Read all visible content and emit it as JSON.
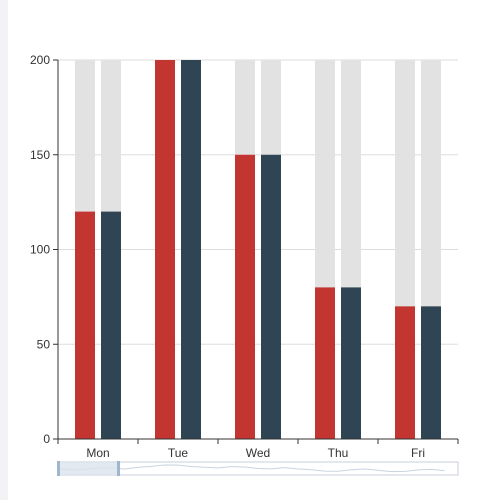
{
  "chart_data": {
    "type": "bar",
    "categories": [
      "Mon",
      "Tue",
      "Wed",
      "Thu",
      "Fri"
    ],
    "series": [
      {
        "values": [
          120,
          200,
          150,
          80,
          70
        ]
      },
      {
        "values": [
          120,
          200,
          150,
          80,
          70
        ]
      }
    ],
    "background_value": 200,
    "ylim": [
      0,
      200
    ],
    "yticks": [
      0,
      50,
      100,
      150,
      200
    ],
    "grid": true,
    "data_zoom": {
      "visible": true,
      "start_fraction": 0,
      "end_fraction": 0.15
    },
    "colors": {
      "series": [
        "#c23531",
        "#2f4554"
      ],
      "background_bar": "#e2e2e2",
      "grid": "#dddddd",
      "axis": "#333333",
      "zoom_fill": "#dbe3ee",
      "zoom_border": "#c8d1dc",
      "zoom_handle": "#9fb6cc",
      "zoom_line": "#c9d3df"
    }
  }
}
